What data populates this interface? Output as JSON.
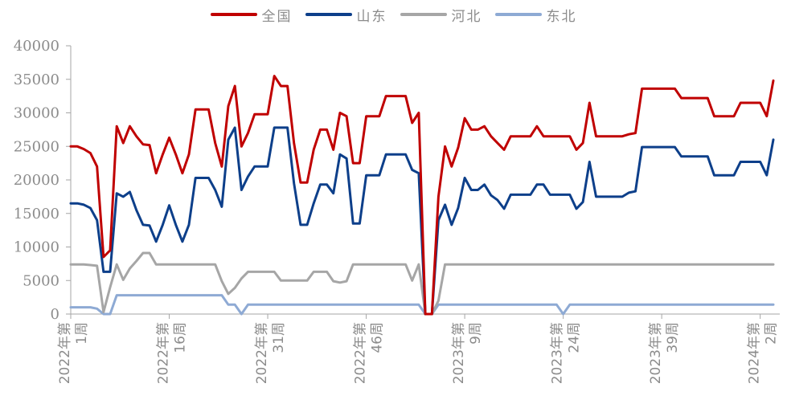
{
  "chart_data": {
    "type": "line",
    "title": "",
    "xlabel": "",
    "ylabel": "",
    "ylim": [
      0,
      40000
    ],
    "yticks": [
      0,
      5000,
      10000,
      15000,
      20000,
      25000,
      30000,
      35000,
      40000
    ],
    "legend_position": "top-center",
    "grid": false,
    "xticks": [
      {
        "index": 0,
        "lines": [
          "2022年第",
          "1周"
        ]
      },
      {
        "index": 15,
        "lines": [
          "2022年第",
          "16周"
        ]
      },
      {
        "index": 30,
        "lines": [
          "2022年第",
          "31周"
        ]
      },
      {
        "index": 45,
        "lines": [
          "2022年第",
          "46周"
        ]
      },
      {
        "index": 60,
        "lines": [
          "2023年第",
          "9周"
        ]
      },
      {
        "index": 75,
        "lines": [
          "2023年第",
          "24周"
        ]
      },
      {
        "index": 90,
        "lines": [
          "2023年第",
          "39周"
        ]
      },
      {
        "index": 105,
        "lines": [
          "2024年第",
          "2周"
        ]
      }
    ],
    "series": [
      {
        "name": "全国",
        "color": "#c00000",
        "values": [
          25000,
          25000,
          24600,
          24000,
          22000,
          8500,
          9500,
          28000,
          25500,
          28000,
          26500,
          25300,
          25200,
          21000,
          23800,
          26300,
          23800,
          21000,
          23800,
          30500,
          30500,
          30500,
          25500,
          22000,
          31000,
          34000,
          25000,
          27000,
          29800,
          29800,
          29800,
          35500,
          34000,
          34000,
          25500,
          19600,
          19600,
          24500,
          27500,
          27500,
          24500,
          30000,
          29500,
          22500,
          22500,
          29500,
          29500,
          29500,
          32500,
          32500,
          32500,
          32500,
          28500,
          30000,
          0,
          0,
          17500,
          25000,
          22000,
          24800,
          29200,
          27500,
          27500,
          28000,
          26500,
          25500,
          24500,
          26500,
          26500,
          26500,
          26500,
          28000,
          26500,
          26500,
          26500,
          26500,
          26500,
          24500,
          25500,
          31500,
          26500,
          26500,
          26500,
          26500,
          26500,
          26800,
          27000,
          33600,
          33600,
          33600,
          33600,
          33600,
          33600,
          32200,
          32200,
          32200,
          32200,
          32200,
          29500,
          29500,
          29500,
          29500,
          31500,
          31500,
          31500,
          31500,
          29500,
          34800
        ]
      },
      {
        "name": "山东",
        "color": "#0d3f8a",
        "values": [
          16500,
          16500,
          16300,
          15800,
          14000,
          6300,
          6300,
          18000,
          17500,
          18200,
          15500,
          13300,
          13200,
          10800,
          13300,
          16200,
          13300,
          10800,
          13300,
          20300,
          20300,
          20300,
          18500,
          16000,
          26000,
          27800,
          18500,
          20500,
          22000,
          22000,
          22000,
          27800,
          27800,
          27800,
          19500,
          13300,
          13300,
          16500,
          19300,
          19300,
          18000,
          23800,
          23200,
          13500,
          13500,
          20700,
          20700,
          20700,
          23800,
          23800,
          23800,
          23800,
          21500,
          21000,
          0,
          0,
          14000,
          16300,
          13300,
          15800,
          20300,
          18500,
          18500,
          19300,
          17700,
          17000,
          15700,
          17800,
          17800,
          17800,
          17800,
          19300,
          19300,
          17800,
          17800,
          17800,
          17800,
          15700,
          16700,
          22700,
          17500,
          17500,
          17500,
          17500,
          17500,
          18100,
          18300,
          24900,
          24900,
          24900,
          24900,
          24900,
          24900,
          23500,
          23500,
          23500,
          23500,
          23500,
          20700,
          20700,
          20700,
          20700,
          22700,
          22700,
          22700,
          22700,
          20700,
          26000
        ]
      },
      {
        "name": "河北",
        "color": "#a6a6a6",
        "values": [
          7400,
          7400,
          7400,
          7300,
          7200,
          300,
          4000,
          7400,
          5100,
          6800,
          7900,
          9100,
          9100,
          7400,
          7400,
          7400,
          7400,
          7400,
          7400,
          7400,
          7400,
          7400,
          7400,
          4900,
          3000,
          3900,
          5300,
          6300,
          6300,
          6300,
          6300,
          6300,
          5000,
          5000,
          5000,
          5000,
          5000,
          6300,
          6300,
          6300,
          4900,
          4700,
          4900,
          7400,
          7400,
          7400,
          7400,
          7400,
          7400,
          7400,
          7400,
          7400,
          5000,
          7400,
          0,
          0,
          2000,
          7400,
          7400,
          7400,
          7400,
          7400,
          7400,
          7400,
          7400,
          7400,
          7400,
          7400,
          7400,
          7400,
          7400,
          7400,
          7400,
          7400,
          7400,
          7400,
          7400,
          7400,
          7400,
          7400,
          7400,
          7400,
          7400,
          7400,
          7400,
          7400,
          7400,
          7400,
          7400,
          7400,
          7400,
          7400,
          7400,
          7400,
          7400,
          7400,
          7400,
          7400,
          7400,
          7400,
          7400,
          7400,
          7400,
          7400,
          7400,
          7400,
          7400,
          7400
        ]
      },
      {
        "name": "东北",
        "color": "#8eaad4",
        "values": [
          1000,
          1000,
          1000,
          1000,
          800,
          0,
          0,
          2800,
          2800,
          2800,
          2800,
          2800,
          2800,
          2800,
          2800,
          2800,
          2800,
          2800,
          2800,
          2800,
          2800,
          2800,
          2800,
          2800,
          1400,
          1400,
          0,
          1400,
          1400,
          1400,
          1400,
          1400,
          1400,
          1400,
          1400,
          1400,
          1400,
          1400,
          1400,
          1400,
          1400,
          1400,
          1400,
          1400,
          1400,
          1400,
          1400,
          1400,
          1400,
          1400,
          1400,
          1400,
          1400,
          1400,
          0,
          0,
          1400,
          1400,
          1400,
          1400,
          1400,
          1400,
          1400,
          1400,
          1400,
          1400,
          1400,
          1400,
          1400,
          1400,
          1400,
          1400,
          1400,
          1400,
          1400,
          0,
          1400,
          1400,
          1400,
          1400,
          1400,
          1400,
          1400,
          1400,
          1400,
          1400,
          1400,
          1400,
          1400,
          1400,
          1400,
          1400,
          1400,
          1400,
          1400,
          1400,
          1400,
          1400,
          1400,
          1400,
          1400,
          1400,
          1400,
          1400,
          1400,
          1400,
          1400,
          1400
        ]
      }
    ]
  }
}
